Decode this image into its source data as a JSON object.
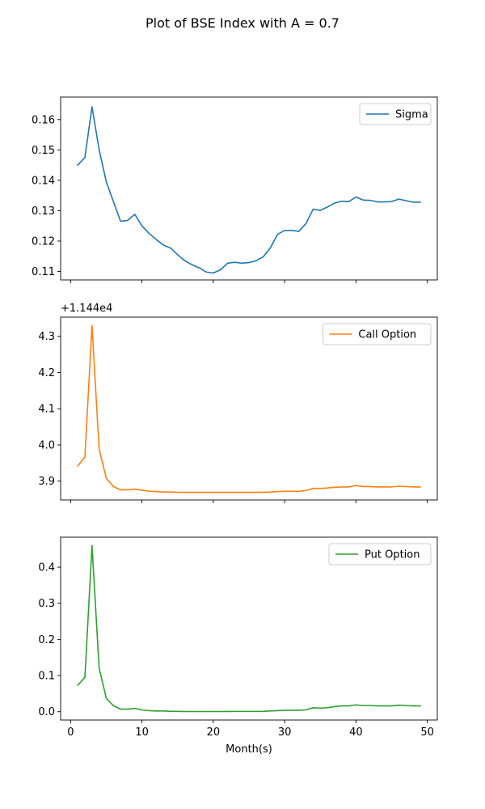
{
  "figure": {
    "title": "Plot of BSE Index with A = 0.7"
  },
  "chart_data": [
    {
      "type": "line",
      "title": "",
      "xlabel": "",
      "ylabel": "",
      "xlim": [
        -1.4,
        51.4
      ],
      "ylim": [
        0.1072,
        0.1674
      ],
      "x_ticks": [
        0,
        10,
        20,
        30,
        40,
        50
      ],
      "x_tick_labels_visible": false,
      "y_ticks": [
        0.11,
        0.12,
        0.13,
        0.14,
        0.15,
        0.16
      ],
      "y_tick_labels": [
        "0.11",
        "0.12",
        "0.13",
        "0.14",
        "0.15",
        "0.16"
      ],
      "offset_label": "",
      "grid": false,
      "legend_position": "top-right",
      "series": [
        {
          "name": "Sigma",
          "color": "#1f77b4",
          "x": [
            1,
            2,
            3,
            4,
            5,
            6,
            7,
            8,
            9,
            10,
            11,
            12,
            13,
            14,
            15,
            16,
            17,
            18,
            19,
            20,
            21,
            22,
            23,
            24,
            25,
            26,
            27,
            28,
            29,
            30,
            31,
            32,
            33,
            34,
            35,
            36,
            37,
            38,
            39,
            40,
            41,
            42,
            43,
            44,
            45,
            46,
            47,
            48,
            49
          ],
          "y": [
            0.145,
            0.1475,
            0.1642,
            0.15,
            0.1395,
            0.133,
            0.1265,
            0.1268,
            0.1288,
            0.125,
            0.1225,
            0.1205,
            0.1187,
            0.1177,
            0.1155,
            0.1135,
            0.1122,
            0.1112,
            0.1098,
            0.1095,
            0.1105,
            0.1127,
            0.113,
            0.1127,
            0.1129,
            0.1135,
            0.1148,
            0.1178,
            0.1222,
            0.1235,
            0.1235,
            0.1232,
            0.1258,
            0.1305,
            0.1301,
            0.1312,
            0.1325,
            0.1331,
            0.133,
            0.1345,
            0.1335,
            0.1334,
            0.1329,
            0.1329,
            0.133,
            0.1338,
            0.1333,
            0.1328,
            0.1328
          ]
        }
      ]
    },
    {
      "type": "line",
      "title": "",
      "xlabel": "",
      "ylabel": "",
      "xlim": [
        -1.4,
        51.4
      ],
      "ylim": [
        3.848,
        4.353
      ],
      "x_ticks": [
        0,
        10,
        20,
        30,
        40,
        50
      ],
      "x_tick_labels_visible": false,
      "y_ticks": [
        3.9,
        4.0,
        4.1,
        4.2,
        4.3
      ],
      "y_tick_labels": [
        "3.9",
        "4.0",
        "4.1",
        "4.2",
        "4.3"
      ],
      "offset_label": "+1.144e4",
      "grid": false,
      "legend_position": "top-right",
      "series": [
        {
          "name": "Call Option",
          "color": "#ff7f0e",
          "x": [
            1,
            2,
            3,
            4,
            5,
            6,
            7,
            8,
            9,
            10,
            11,
            12,
            13,
            14,
            15,
            16,
            17,
            18,
            19,
            20,
            21,
            22,
            23,
            24,
            25,
            26,
            27,
            28,
            29,
            30,
            31,
            32,
            33,
            34,
            35,
            36,
            37,
            38,
            39,
            40,
            41,
            42,
            43,
            44,
            45,
            46,
            47,
            48,
            49
          ],
          "y": [
            3.942,
            3.966,
            4.33,
            3.988,
            3.908,
            3.885,
            3.876,
            3.876,
            3.878,
            3.875,
            3.872,
            3.871,
            3.87,
            3.87,
            3.869,
            3.869,
            3.869,
            3.869,
            3.869,
            3.869,
            3.869,
            3.869,
            3.869,
            3.869,
            3.869,
            3.869,
            3.869,
            3.87,
            3.871,
            3.872,
            3.872,
            3.872,
            3.874,
            3.88,
            3.88,
            3.881,
            3.883,
            3.884,
            3.884,
            3.888,
            3.885,
            3.885,
            3.884,
            3.884,
            3.884,
            3.886,
            3.885,
            3.884,
            3.884
          ]
        }
      ]
    },
    {
      "type": "line",
      "title": "",
      "xlabel": "Month(s)",
      "ylabel": "",
      "xlim": [
        -1.4,
        51.4
      ],
      "ylim": [
        -0.023,
        0.483
      ],
      "x_ticks": [
        0,
        10,
        20,
        30,
        40,
        50
      ],
      "x_tick_labels_visible": true,
      "x_tick_labels": [
        "0",
        "10",
        "20",
        "30",
        "40",
        "50"
      ],
      "y_ticks": [
        0.0,
        0.1,
        0.2,
        0.3,
        0.4
      ],
      "y_tick_labels": [
        "0.0",
        "0.1",
        "0.2",
        "0.3",
        "0.4"
      ],
      "offset_label": "",
      "grid": false,
      "legend_position": "top-right",
      "series": [
        {
          "name": "Put Option",
          "color": "#2ca02c",
          "x": [
            1,
            2,
            3,
            4,
            5,
            6,
            7,
            8,
            9,
            10,
            11,
            12,
            13,
            14,
            15,
            16,
            17,
            18,
            19,
            20,
            21,
            22,
            23,
            24,
            25,
            26,
            27,
            28,
            29,
            30,
            31,
            32,
            33,
            34,
            35,
            36,
            37,
            38,
            39,
            40,
            41,
            42,
            43,
            44,
            45,
            46,
            47,
            48,
            49
          ],
          "y": [
            0.073,
            0.095,
            0.46,
            0.12,
            0.037,
            0.017,
            0.007,
            0.007,
            0.009,
            0.005,
            0.003,
            0.002,
            0.002,
            0.001,
            0.001,
            0.0005,
            0.0005,
            0.0005,
            0.0005,
            0.0005,
            0.0005,
            0.0007,
            0.0008,
            0.0008,
            0.0008,
            0.0008,
            0.001,
            0.002,
            0.003,
            0.004,
            0.004,
            0.004,
            0.005,
            0.011,
            0.01,
            0.011,
            0.014,
            0.016,
            0.016,
            0.019,
            0.017,
            0.017,
            0.016,
            0.016,
            0.016,
            0.018,
            0.017,
            0.016,
            0.016
          ]
        }
      ]
    }
  ]
}
